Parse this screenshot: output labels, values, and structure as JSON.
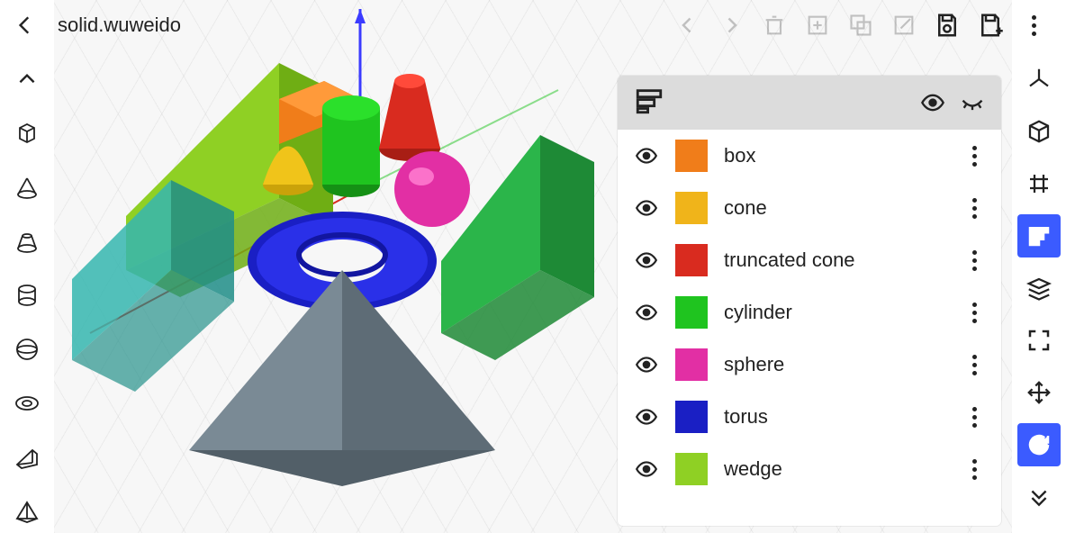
{
  "header": {
    "title": "solid.wuweido"
  },
  "top_actions": {
    "back": "back",
    "forward": "forward",
    "delete": "delete",
    "duplicate": "duplicate",
    "group": "group",
    "edit": "edit",
    "save": "save",
    "save_as": "save-as",
    "more": "more"
  },
  "left_tools": [
    {
      "name": "collapse-up-icon",
      "kind": "chevron-up"
    },
    {
      "name": "cube-icon",
      "kind": "cube"
    },
    {
      "name": "cone-icon",
      "kind": "cone"
    },
    {
      "name": "truncated-cone-icon",
      "kind": "truncone"
    },
    {
      "name": "cylinder-icon",
      "kind": "cylinder"
    },
    {
      "name": "sphere-icon",
      "kind": "sphere"
    },
    {
      "name": "torus-icon",
      "kind": "torus"
    },
    {
      "name": "wedge-icon",
      "kind": "wedge"
    },
    {
      "name": "pyramid-icon",
      "kind": "pyramid"
    }
  ],
  "right_tools": [
    {
      "name": "axes-icon",
      "active": false
    },
    {
      "name": "view-cube-icon",
      "active": false
    },
    {
      "name": "grid-icon",
      "active": false
    },
    {
      "name": "layers-icon",
      "active": true
    },
    {
      "name": "stack-icon",
      "active": false
    },
    {
      "name": "fullscreen-icon",
      "active": false
    },
    {
      "name": "move-icon",
      "active": false
    },
    {
      "name": "rotate-icon",
      "active": true
    },
    {
      "name": "more-down-icon",
      "active": false
    }
  ],
  "layers_panel": {
    "items": [
      {
        "label": "box",
        "color": "#f07d1a"
      },
      {
        "label": "cone",
        "color": "#f0b41a"
      },
      {
        "label": "truncated cone",
        "color": "#d92b1f"
      },
      {
        "label": "cylinder",
        "color": "#1fc41f"
      },
      {
        "label": "sphere",
        "color": "#e22fa4"
      },
      {
        "label": "torus",
        "color": "#1a1fc4"
      },
      {
        "label": "wedge",
        "color": "#8fd024"
      }
    ]
  },
  "scene": {
    "axis_colors": {
      "x": "#d92b1f",
      "y": "#1fc41f",
      "z": "#3b3bff"
    },
    "shapes": {
      "wedge_big": "#8fd024",
      "wedge_big_shade": "#6fae14",
      "prism_teal": "#36b7b0",
      "prism_teal_shade": "#1f8e88",
      "box": "#f07d1a",
      "box_shade": "#c5600e",
      "cone": "#f0c41a",
      "cone_shade": "#caa20a",
      "truncone": "#d92b1f",
      "truncone_shade": "#a81e15",
      "cylinder": "#1fc41f",
      "cylinder_shade": "#159015",
      "sphere": "#e22fa4",
      "torus": "#1a1fc4",
      "torus_shade": "#1216a0",
      "wedge_green": "#2bb54a",
      "wedge_green_shade": "#1e8a36",
      "pyramid": "#7a8a95",
      "pyramid_shade": "#5e6c76"
    }
  }
}
